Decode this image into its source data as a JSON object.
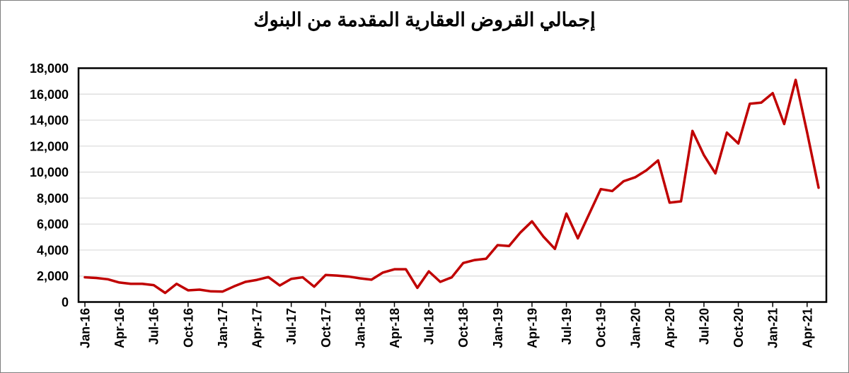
{
  "title": "إجمالي القروض العقارية المقدمة من البنوك",
  "chart_data": {
    "type": "line",
    "title": "إجمالي القروض العقارية المقدمة من البنوك",
    "legend": "none",
    "grid": "horizontal",
    "series_name": "إجمالي القروض العقارية",
    "series_color": "#C00000",
    "gridline_color": "#D9D9D9",
    "plot_border_color": "#000000",
    "ylim": [
      0,
      18000
    ],
    "y_tick_step": 2000,
    "x_tick_interval": 3,
    "y_ticks": {
      "values": [
        0,
        2000,
        4000,
        6000,
        8000,
        10000,
        12000,
        14000,
        16000,
        18000
      ],
      "labels": [
        "0",
        "2,000",
        "4,000",
        "6,000",
        "8,000",
        "10,000",
        "12,000",
        "14,000",
        "16,000",
        "18,000"
      ]
    },
    "categories": [
      "Jan-16",
      "Feb-16",
      "Mar-16",
      "Apr-16",
      "May-16",
      "Jun-16",
      "Jul-16",
      "Aug-16",
      "Sep-16",
      "Oct-16",
      "Nov-16",
      "Dec-16",
      "Jan-17",
      "Feb-17",
      "Mar-17",
      "Apr-17",
      "May-17",
      "Jun-17",
      "Jul-17",
      "Aug-17",
      "Sep-17",
      "Oct-17",
      "Nov-17",
      "Dec-17",
      "Jan-18",
      "Feb-18",
      "Mar-18",
      "Apr-18",
      "May-18",
      "Jun-18",
      "Jul-18",
      "Aug-18",
      "Sep-18",
      "Oct-18",
      "Nov-18",
      "Dec-18",
      "Jan-19",
      "Feb-19",
      "Mar-19",
      "Apr-19",
      "May-19",
      "Jun-19",
      "Jul-19",
      "Aug-19",
      "Sep-19",
      "Oct-19",
      "Nov-19",
      "Dec-19",
      "Jan-20",
      "Feb-20",
      "Mar-20",
      "Apr-20",
      "May-20",
      "Jun-20",
      "Jul-20",
      "Aug-20",
      "Sep-20",
      "Oct-20",
      "Nov-20",
      "Dec-20",
      "Jan-21",
      "Feb-21",
      "Mar-21",
      "Apr-21",
      "May-21"
    ],
    "values": [
      1900,
      1850,
      1750,
      1500,
      1400,
      1400,
      1300,
      700,
      1400,
      900,
      950,
      820,
      800,
      1200,
      1550,
      1700,
      1920,
      1270,
      1780,
      1900,
      1180,
      2080,
      2030,
      1960,
      1820,
      1720,
      2270,
      2520,
      2520,
      1090,
      2360,
      1550,
      1900,
      3000,
      3230,
      3330,
      4380,
      4310,
      5360,
      6210,
      5030,
      4090,
      6810,
      4900,
      6800,
      8690,
      8540,
      9300,
      9600,
      10150,
      10900,
      7650,
      7750,
      13170,
      11300,
      9900,
      13040,
      12200,
      15260,
      15350,
      16080,
      13700,
      17100,
      13050,
      8800
    ]
  }
}
